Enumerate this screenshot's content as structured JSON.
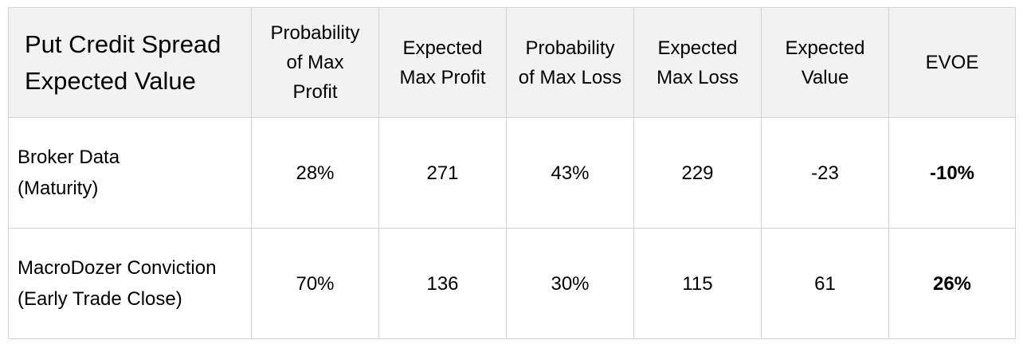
{
  "table": {
    "corner": [
      "Put Credit Spread",
      "Expected Value"
    ],
    "headers": [
      [
        "Probability",
        "of Max",
        "Profit"
      ],
      [
        "Expected",
        "Max Profit"
      ],
      [
        "Probability",
        "of Max Loss"
      ],
      [
        "Expected",
        "Max Loss"
      ],
      [
        "Expected",
        "Value"
      ],
      [
        "EVOE"
      ]
    ],
    "rows": [
      {
        "label": [
          "Broker Data",
          "(Maturity)"
        ],
        "values": [
          "28%",
          "271",
          "43%",
          "229",
          "-23",
          "-10%"
        ]
      },
      {
        "label": [
          "MacroDozer Conviction",
          "(Early Trade Close)"
        ],
        "values": [
          "70%",
          "136",
          "30%",
          "115",
          "61",
          "26%"
        ]
      }
    ]
  }
}
